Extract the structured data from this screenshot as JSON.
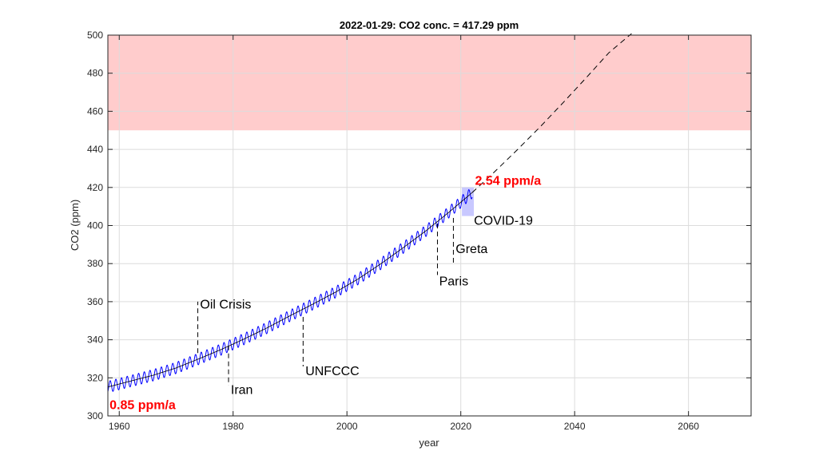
{
  "chart_data": {
    "type": "line",
    "title": "2022-01-29: CO2 conc. = 417.29 ppm",
    "xlabel": "year",
    "ylabel": "CO2 (ppm)",
    "xlim": [
      1958,
      2071
    ],
    "ylim": [
      300,
      500
    ],
    "xticks": [
      1960,
      1980,
      2000,
      2020,
      2040,
      2060
    ],
    "yticks": [
      300,
      320,
      340,
      360,
      380,
      400,
      420,
      440,
      460,
      480,
      500
    ],
    "grid": true,
    "colors": {
      "measured": "#0000ff",
      "trend": "#000000",
      "projection": "#000000",
      "danger_zone": "#ffcccc",
      "covid_box": "#c8c8ff",
      "rate_text": "#ff0000"
    },
    "danger_band": [
      450,
      500
    ],
    "series": [
      {
        "style": "measured-seasonal",
        "x": [
          1958,
          1962,
          1966,
          1970,
          1974,
          1978,
          1982,
          1986,
          1990,
          1994,
          1998,
          2002,
          2006,
          2010,
          2014,
          2018,
          2022
        ],
        "values": [
          315.2,
          318.3,
          321.4,
          325.2,
          330.0,
          335.0,
          340.5,
          346.3,
          352.6,
          358.7,
          365.0,
          372.0,
          380.0,
          388.6,
          397.5,
          407.2,
          417.3
        ],
        "seasonal_amplitude_ppm": 3
      },
      {
        "style": "trend",
        "x": [
          1958,
          1962,
          1966,
          1970,
          1974,
          1978,
          1982,
          1986,
          1990,
          1994,
          1998,
          2002,
          2006,
          2010,
          2014,
          2018,
          2022
        ],
        "values": [
          315.2,
          318.3,
          321.4,
          325.2,
          330.0,
          335.0,
          340.5,
          346.3,
          352.6,
          358.7,
          365.0,
          372.0,
          380.0,
          388.6,
          397.5,
          407.2,
          417.3
        ]
      },
      {
        "style": "projection",
        "x": [
          2022,
          2026,
          2030,
          2034,
          2038,
          2042,
          2046,
          2050
        ],
        "values": [
          417.3,
          428.4,
          440.0,
          452.0,
          464.6,
          477.5,
          490.7,
          504.3
        ]
      }
    ],
    "events": [
      {
        "label": "Oil Crisis",
        "x": 1973.8,
        "y_from": 333,
        "y_to": 360,
        "text_x": 1974.2,
        "text_y": 359,
        "anchor": "start"
      },
      {
        "label": "Iran",
        "x": 1979.2,
        "y_from": 337,
        "y_to": 316,
        "text_x": 1979.6,
        "text_y": 314,
        "anchor": "start"
      },
      {
        "label": "UNFCCC",
        "x": 1992.3,
        "y_from": 352,
        "y_to": 326,
        "text_x": 1992.7,
        "text_y": 324,
        "anchor": "start"
      },
      {
        "label": "Paris",
        "x": 2015.9,
        "y_from": 401,
        "y_to": 374,
        "text_x": 2016.2,
        "text_y": 371,
        "anchor": "start"
      },
      {
        "label": "Greta",
        "x": 2018.7,
        "y_from": 404,
        "y_to": 379,
        "text_x": 2019.1,
        "text_y": 388,
        "anchor": "start"
      },
      {
        "label": "COVID-19",
        "x": 2022.3,
        "y_from": 403,
        "y_to": 403,
        "text_x": 2022.3,
        "text_y": 403,
        "anchor": "start"
      }
    ],
    "covid_box": {
      "x": [
        2020.2,
        2022.3
      ],
      "y": [
        405,
        420
      ]
    },
    "rate_labels": [
      {
        "label": "0.85 ppm/a",
        "x": 1958.3,
        "y": 306,
        "anchor": "start"
      },
      {
        "label": "2.54 ppm/a",
        "x": 2022.5,
        "y": 424,
        "anchor": "start"
      }
    ]
  }
}
